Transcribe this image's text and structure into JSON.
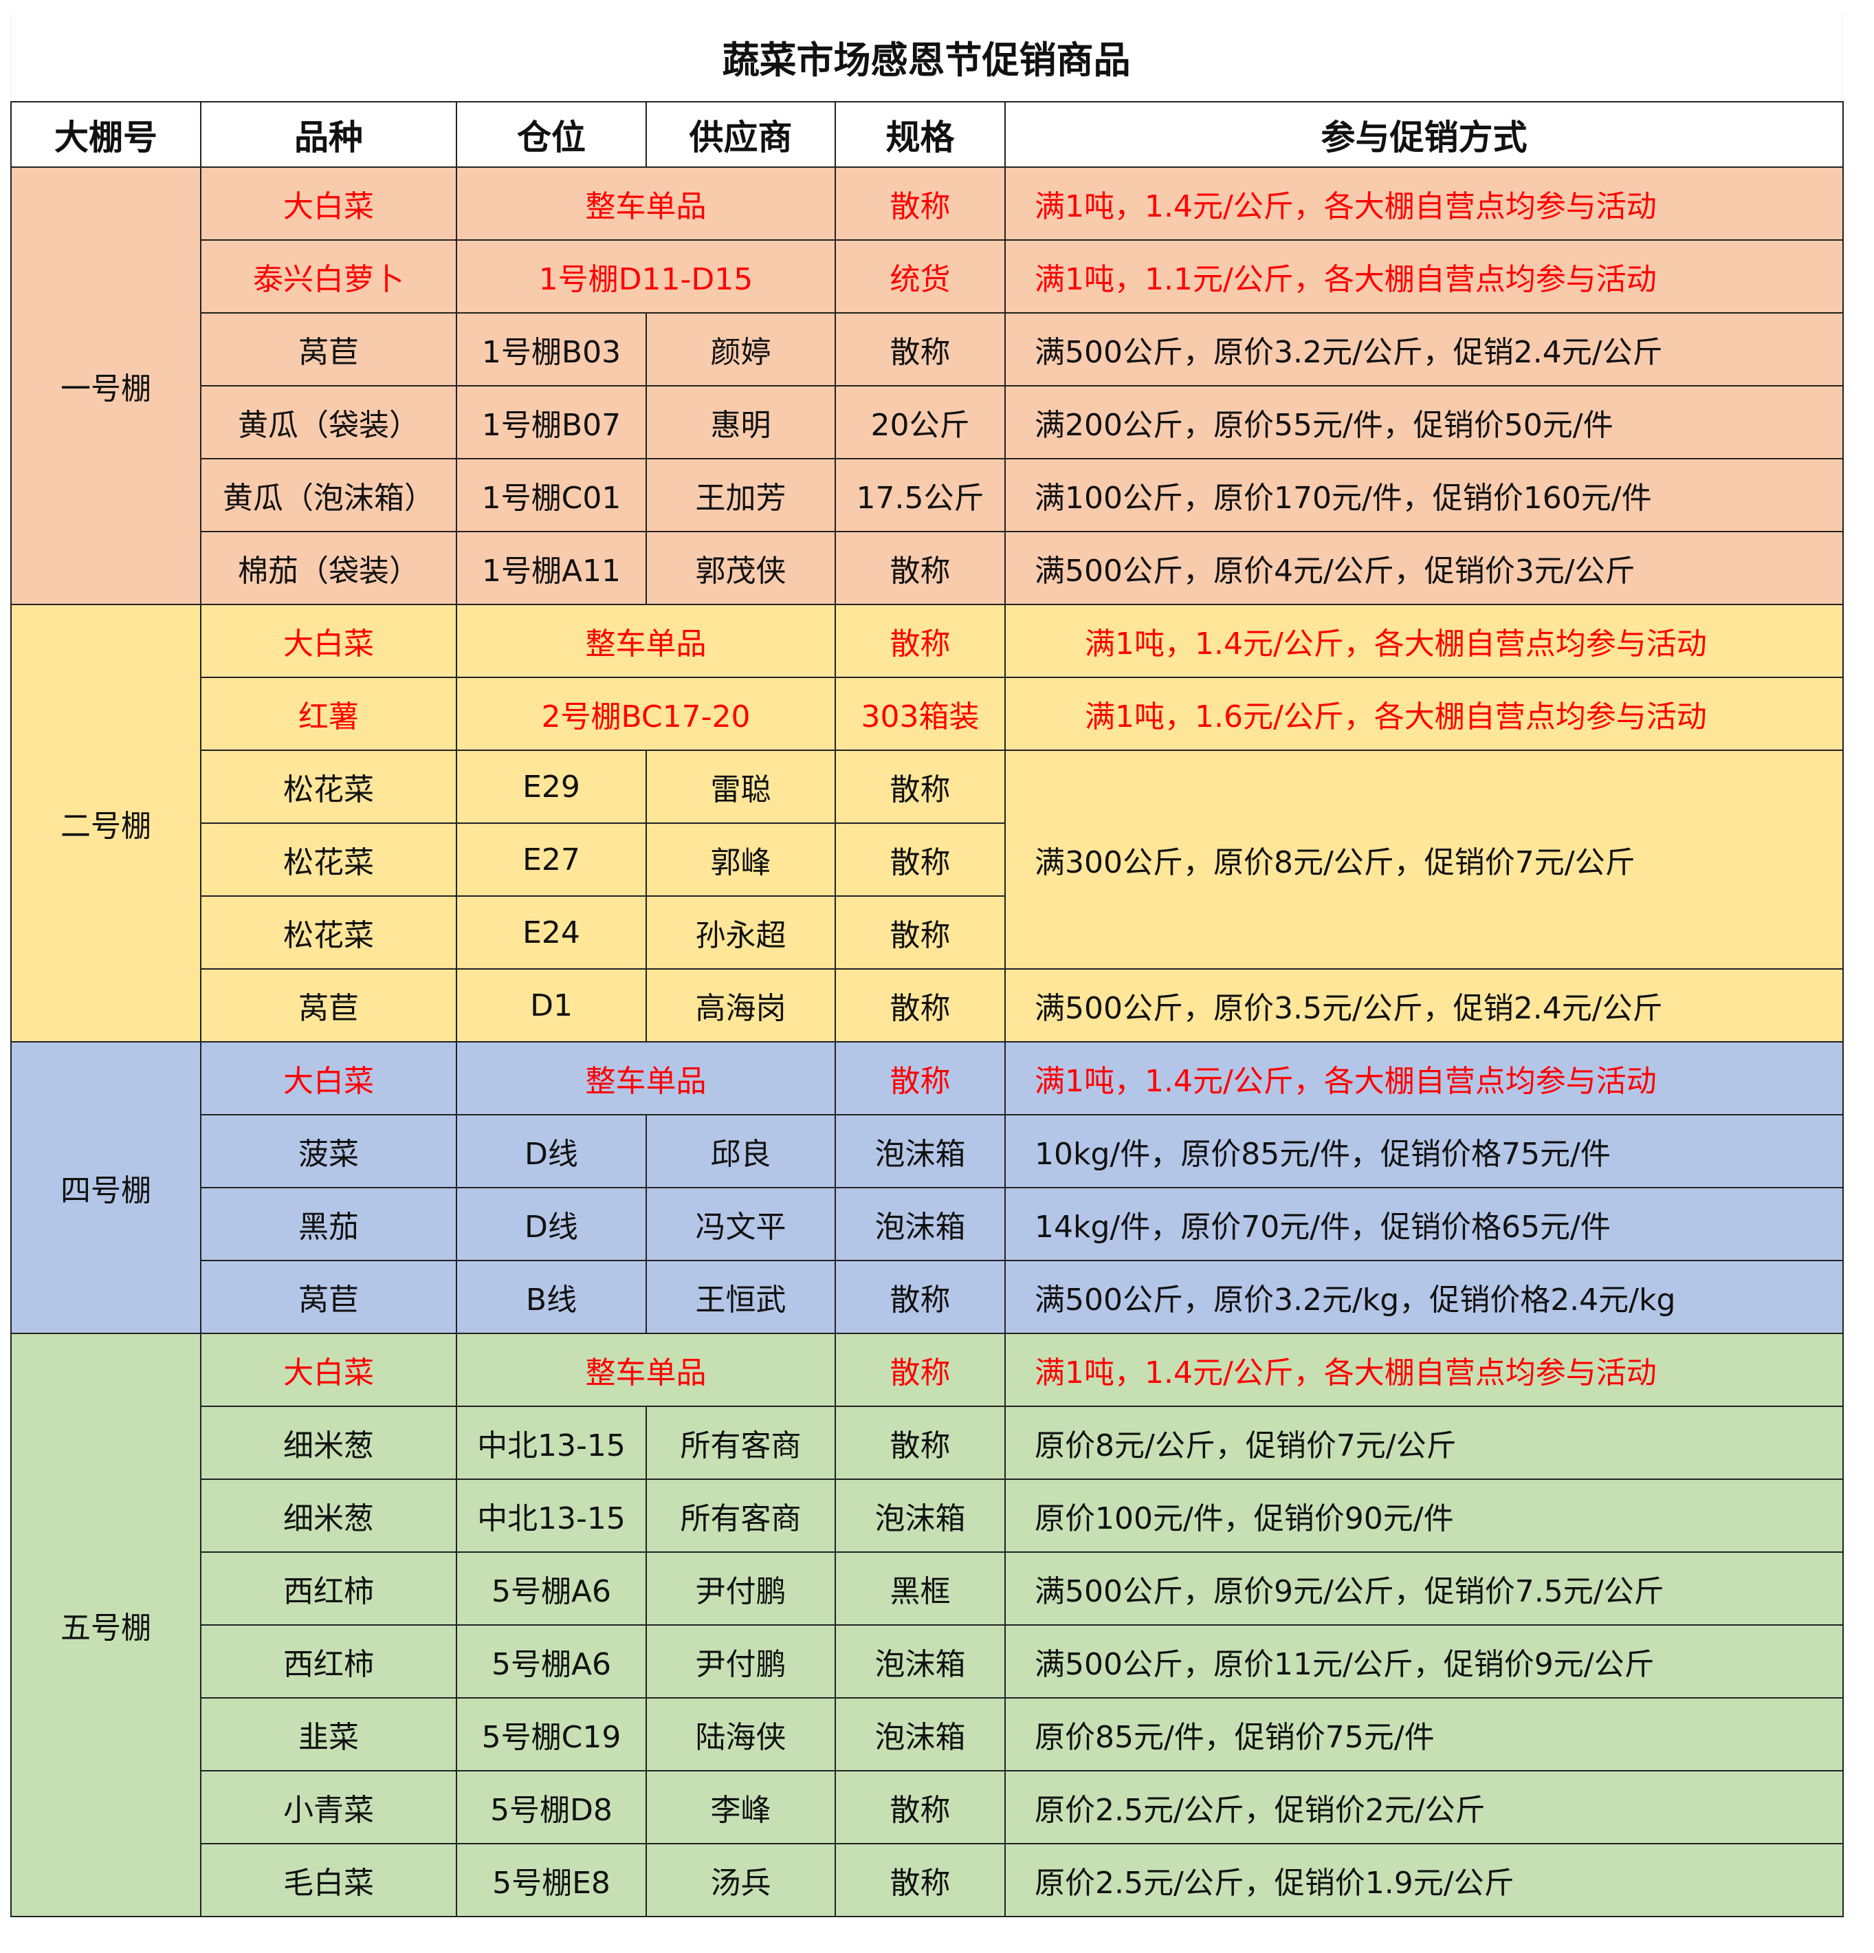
{
  "title": "蔬菜市场感恩节促销商品",
  "headers": [
    "大棚号",
    "品种",
    "仓位",
    "供应商",
    "规格",
    "参与促销方式"
  ],
  "colors": {
    "一号棚": "#F8CBAD",
    "二号棚": "#FFE699",
    "四号棚": "#B4C6E7",
    "五号棚": "#C6E0B4",
    "highlight_text": "#FF0000"
  },
  "groups": [
    {
      "name": "一号棚",
      "cls": "g1",
      "rows": [
        {
          "variety": "大白菜",
          "location": "整车单品",
          "supplier": null,
          "spec": "散称",
          "promo": "满1吨，1.4元/公斤，各大棚自营点均参与活动",
          "highlight": true
        },
        {
          "variety": "泰兴白萝卜",
          "location": "1号棚D11-D15",
          "supplier": null,
          "spec": "统货",
          "promo": "满1吨，1.1元/公斤，各大棚自营点均参与活动",
          "highlight": true
        },
        {
          "variety": "莴苣",
          "location": "1号棚B03",
          "supplier": "颜婷",
          "spec": "散称",
          "promo": "满500公斤，原价3.2元/公斤，促销2.4元/公斤"
        },
        {
          "variety": "黄瓜（袋装）",
          "location": "1号棚B07",
          "supplier": "惠明",
          "spec": "20公斤",
          "promo": "满200公斤，原价55元/件，促销价50元/件"
        },
        {
          "variety": "黄瓜（泡沫箱）",
          "location": "1号棚C01",
          "supplier": "王加芳",
          "spec": "17.5公斤",
          "promo": "满100公斤，原价170元/件，促销价160元/件"
        },
        {
          "variety": "棉茄（袋装）",
          "location": "1号棚A11",
          "supplier": "郭茂侠",
          "spec": "散称",
          "promo": "满500公斤，原价4元/公斤，促销价3元/公斤"
        }
      ]
    },
    {
      "name": "二号棚",
      "cls": "g2",
      "rows": [
        {
          "variety": "大白菜",
          "location": "整车单品",
          "supplier": null,
          "spec": "散称",
          "promo": "满1吨，1.4元/公斤，各大棚自营点均参与活动",
          "highlight": true,
          "center": true
        },
        {
          "variety": "红薯",
          "location": "2号棚BC17-20",
          "supplier": null,
          "spec": "303箱装",
          "promo": "满1吨，1.6元/公斤，各大棚自营点均参与活动",
          "highlight": true,
          "center": true
        },
        {
          "variety": "松花菜",
          "location": "E29",
          "supplier": "雷聪",
          "spec": "散称",
          "promo": "满300公斤，原价8元/公斤，促销价7元/公斤",
          "promo_rows": 3
        },
        {
          "variety": "松花菜",
          "location": "E27",
          "supplier": "郭峰",
          "spec": "散称",
          "promo": null
        },
        {
          "variety": "松花菜",
          "location": "E24",
          "supplier": "孙永超",
          "spec": "散称",
          "promo": null
        },
        {
          "variety": "莴苣",
          "location": "D1",
          "supplier": "高海岗",
          "spec": "散称",
          "promo": "满500公斤，原价3.5元/公斤，促销2.4元/公斤"
        }
      ]
    },
    {
      "name": "四号棚",
      "cls": "g4",
      "rows": [
        {
          "variety": "大白菜",
          "location": "整车单品",
          "supplier": null,
          "spec": "散称",
          "promo": "满1吨，1.4元/公斤，各大棚自营点均参与活动",
          "highlight": true
        },
        {
          "variety": "菠菜",
          "location": "D线",
          "supplier": "邱良",
          "spec": "泡沫箱",
          "promo": "10kg/件，原价85元/件，促销价格75元/件"
        },
        {
          "variety": "黑茄",
          "location": "D线",
          "supplier": "冯文平",
          "spec": "泡沫箱",
          "promo": "14kg/件，原价70元/件，促销价格65元/件"
        },
        {
          "variety": "莴苣",
          "location": "B线",
          "supplier": "王恒武",
          "spec": "散称",
          "promo": "满500公斤，原价3.2元/kg，促销价格2.4元/kg"
        }
      ]
    },
    {
      "name": "五号棚",
      "cls": "g5",
      "rows": [
        {
          "variety": "大白菜",
          "location": "整车单品",
          "supplier": null,
          "spec": "散称",
          "promo": "满1吨，1.4元/公斤，各大棚自营点均参与活动",
          "highlight": true
        },
        {
          "variety": "细米葱",
          "location": "中北13-15",
          "supplier": "所有客商",
          "spec": "散称",
          "promo": "原价8元/公斤，促销价7元/公斤"
        },
        {
          "variety": "细米葱",
          "location": "中北13-15",
          "supplier": "所有客商",
          "spec": "泡沫箱",
          "promo": "原价100元/件，促销价90元/件"
        },
        {
          "variety": "西红柿",
          "location": "5号棚A6",
          "supplier": "尹付鹏",
          "spec": "黑框",
          "promo": "满500公斤，原价9元/公斤，促销价7.5元/公斤"
        },
        {
          "variety": "西红柿",
          "location": "5号棚A6",
          "supplier": "尹付鹏",
          "spec": "泡沫箱",
          "promo": "满500公斤，原价11元/公斤，促销价9元/公斤"
        },
        {
          "variety": "韭菜",
          "location": "5号棚C19",
          "supplier": "陆海侠",
          "spec": "泡沫箱",
          "promo": "原价85元/件，促销价75元/件"
        },
        {
          "variety": "小青菜",
          "location": "5号棚D8",
          "supplier": "李峰",
          "spec": "散称",
          "promo": "原价2.5元/公斤，促销价2元/公斤"
        },
        {
          "variety": "毛白菜",
          "location": "5号棚E8",
          "supplier": "汤兵",
          "spec": "散称",
          "promo": "原价2.5元/公斤，促销价1.9元/公斤"
        }
      ]
    }
  ]
}
